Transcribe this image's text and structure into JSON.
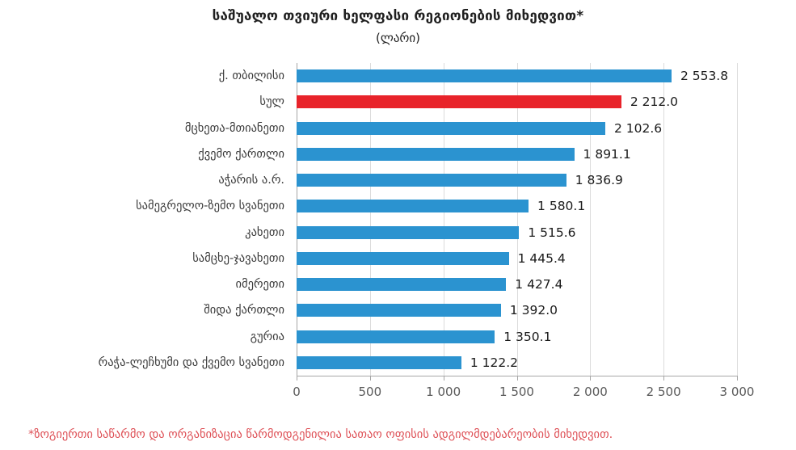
{
  "title": "საშუალო თვიური ხელფასი რეგიონების მიხედვით*",
  "subtitle": "(ლარი)",
  "footnote": "*ზოგიერთი საწარმო და ორგანიზაცია წარმოდგენილია სათაო ოფისის ადგილმდებარეობის მიხედვით.",
  "colors": {
    "bar": "#2b93d0",
    "highlight": "#e8232a",
    "footnote_text": "#de5056",
    "axis_line": "#a6a6a6",
    "gridline": "#dcdcdc",
    "category_label": "#3a3a3a",
    "tick_label": "#595959",
    "value_label": "#1a1a1a"
  },
  "chart_data": {
    "type": "bar",
    "orientation": "horizontal",
    "title": "საშუალო თვიური ხელფასი რეგიონების მიხედვით*",
    "subtitle": "(ლარი)",
    "categories": [
      "ქ. თბილისი",
      "სულ",
      "მცხეთა-მთიანეთი",
      "ქვემო ქართლი",
      "აჭარის ა.რ.",
      "სამეგრელო-ზემო სვანეთი",
      "კახეთი",
      "სამცხე-ჯავახეთი",
      "იმერეთი",
      "შიდა ქართლი",
      "გურია",
      "რაჭა-ლეჩხუმი და ქვემო სვანეთი"
    ],
    "values": [
      2553.8,
      2212.0,
      2102.6,
      1891.1,
      1836.9,
      1580.1,
      1515.6,
      1445.4,
      1427.4,
      1392.0,
      1350.1,
      1122.2
    ],
    "value_labels": [
      "2 553.8",
      "2 212.0",
      "2 102.6",
      "1 891.1",
      "1 836.9",
      "1 580.1",
      "1 515.6",
      "1 445.4",
      "1 427.4",
      "1 392.0",
      "1 350.1",
      "1 122.2"
    ],
    "highlight_index": 1,
    "xlim": [
      0,
      3000
    ],
    "x_ticks": [
      0,
      500,
      1000,
      1500,
      2000,
      2500,
      3000
    ],
    "x_tick_labels": [
      "0",
      "500",
      "1 000",
      "1 500",
      "2 000",
      "2 500",
      "3 000"
    ],
    "grid": "vertical-only",
    "legend": "none"
  }
}
